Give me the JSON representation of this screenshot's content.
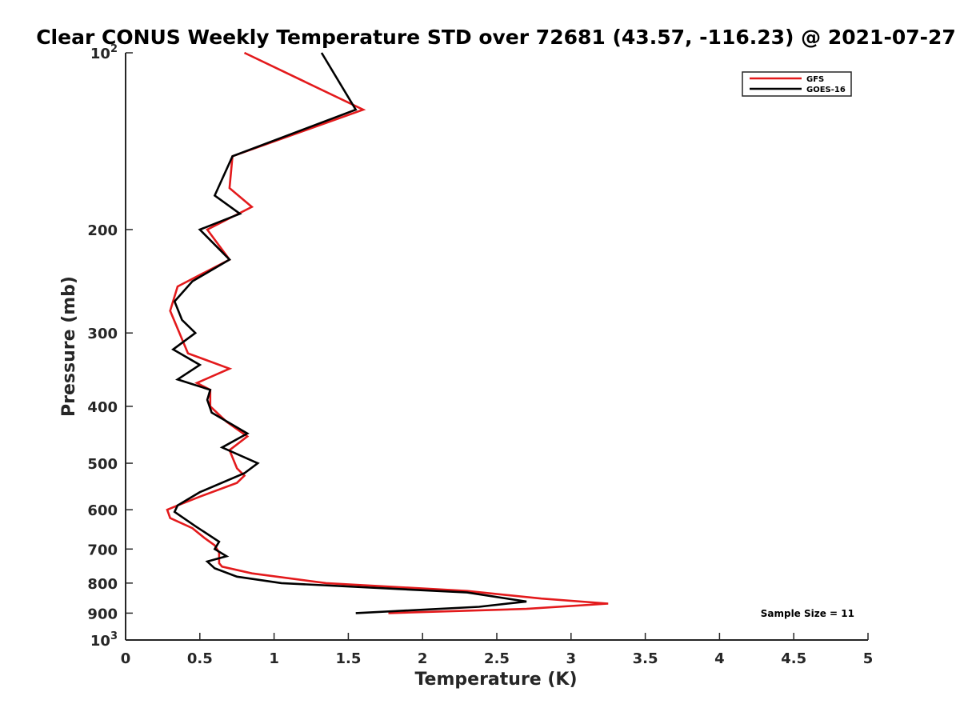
{
  "chart_data": {
    "type": "line",
    "title": "Clear CONUS Weekly Temperature STD over 72681 (43.57, -116.23) @ 2021-07-27",
    "xlabel": "Temperature (K)",
    "ylabel": "Pressure (mb)",
    "xlim": [
      0,
      5
    ],
    "ylim": [
      100,
      1000
    ],
    "y_scale": "log",
    "y_reversed": true,
    "x_ticks": [
      "0",
      "0.5",
      "1",
      "1.5",
      "2",
      "2.5",
      "3",
      "3.5",
      "4",
      "4.5",
      "5"
    ],
    "x_tick_values": [
      0,
      0.5,
      1,
      1.5,
      2,
      2.5,
      3,
      3.5,
      4,
      4.5,
      5
    ],
    "y_tick_values": [
      100,
      200,
      300,
      400,
      500,
      600,
      700,
      800,
      900,
      1000
    ],
    "y_tick_labels": [
      {
        "base": "10",
        "exp": "2"
      },
      {
        "base": "200",
        "exp": ""
      },
      {
        "base": "300",
        "exp": ""
      },
      {
        "base": "400",
        "exp": ""
      },
      {
        "base": "500",
        "exp": ""
      },
      {
        "base": "600",
        "exp": ""
      },
      {
        "base": "700",
        "exp": ""
      },
      {
        "base": "800",
        "exp": ""
      },
      {
        "base": "900",
        "exp": ""
      },
      {
        "base": "10",
        "exp": "3"
      }
    ],
    "grid": false,
    "legend_position": "top-right",
    "annotation": "Sample Size = 11",
    "series": [
      {
        "name": "GFS",
        "color": "#e31a1c",
        "points": [
          [
            0.8,
            100
          ],
          [
            1.6,
            125
          ],
          [
            0.72,
            150
          ],
          [
            0.7,
            170
          ],
          [
            0.85,
            183
          ],
          [
            0.55,
            200
          ],
          [
            0.7,
            225
          ],
          [
            0.35,
            250
          ],
          [
            0.3,
            275
          ],
          [
            0.42,
            325
          ],
          [
            0.7,
            345
          ],
          [
            0.48,
            365
          ],
          [
            0.57,
            375
          ],
          [
            0.57,
            400
          ],
          [
            0.68,
            425
          ],
          [
            0.82,
            450
          ],
          [
            0.7,
            475
          ],
          [
            0.75,
            510
          ],
          [
            0.8,
            525
          ],
          [
            0.75,
            540
          ],
          [
            0.5,
            570
          ],
          [
            0.35,
            590
          ],
          [
            0.28,
            600
          ],
          [
            0.3,
            620
          ],
          [
            0.45,
            645
          ],
          [
            0.53,
            670
          ],
          [
            0.6,
            690
          ],
          [
            0.63,
            710
          ],
          [
            0.63,
            740
          ],
          [
            0.65,
            750
          ],
          [
            0.85,
            770
          ],
          [
            1.35,
            800
          ],
          [
            2.3,
            825
          ],
          [
            2.8,
            850
          ],
          [
            3.25,
            867
          ],
          [
            2.7,
            885
          ],
          [
            1.77,
            900
          ]
        ]
      },
      {
        "name": "GOES-16",
        "color": "#000000",
        "points": [
          [
            1.32,
            100
          ],
          [
            1.55,
            125
          ],
          [
            0.72,
            150
          ],
          [
            0.6,
            175
          ],
          [
            0.77,
            188
          ],
          [
            0.5,
            200
          ],
          [
            0.7,
            225
          ],
          [
            0.45,
            245
          ],
          [
            0.33,
            265
          ],
          [
            0.38,
            285
          ],
          [
            0.47,
            300
          ],
          [
            0.32,
            320
          ],
          [
            0.5,
            340
          ],
          [
            0.35,
            360
          ],
          [
            0.57,
            375
          ],
          [
            0.55,
            390
          ],
          [
            0.58,
            410
          ],
          [
            0.82,
            445
          ],
          [
            0.65,
            470
          ],
          [
            0.89,
            500
          ],
          [
            0.8,
            520
          ],
          [
            0.5,
            560
          ],
          [
            0.35,
            590
          ],
          [
            0.33,
            605
          ],
          [
            0.47,
            640
          ],
          [
            0.63,
            680
          ],
          [
            0.6,
            700
          ],
          [
            0.68,
            720
          ],
          [
            0.55,
            735
          ],
          [
            0.6,
            755
          ],
          [
            0.75,
            780
          ],
          [
            1.05,
            800
          ],
          [
            2.3,
            830
          ],
          [
            2.7,
            860
          ],
          [
            2.38,
            878
          ],
          [
            1.55,
            900
          ]
        ]
      }
    ]
  }
}
